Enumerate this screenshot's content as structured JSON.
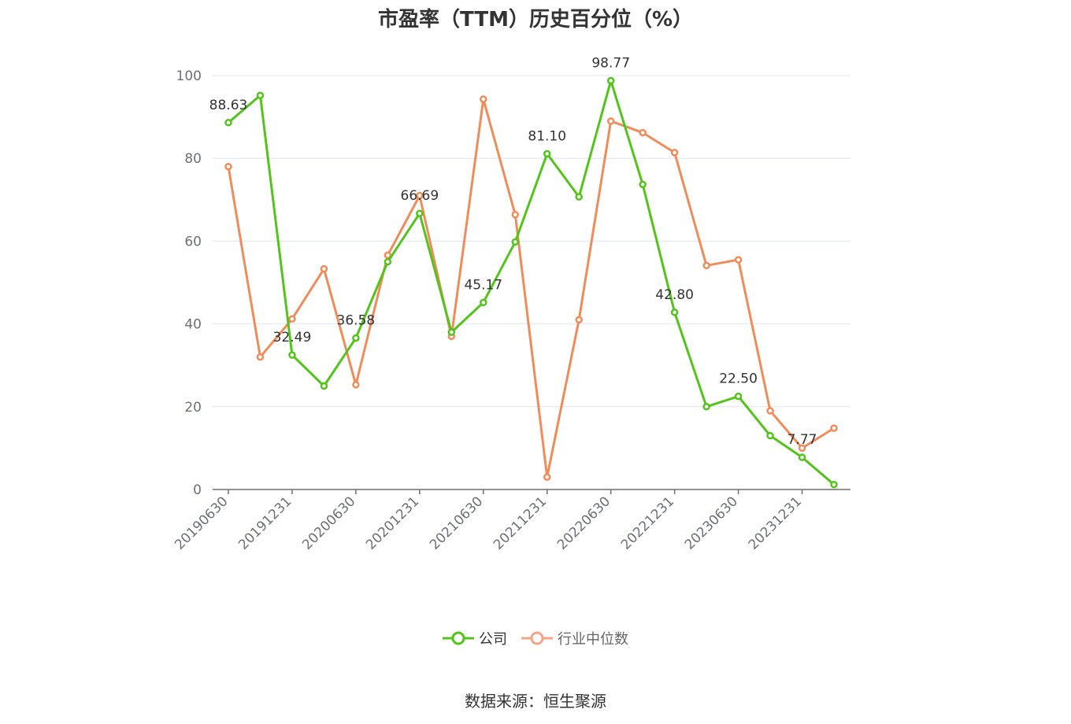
{
  "chart_data": {
    "type": "line",
    "title": "市盈率（TTM）历史百分位（%）",
    "xlabel": "",
    "ylabel": "",
    "ylim": [
      0,
      100
    ],
    "yticks": [
      0,
      20,
      40,
      60,
      80,
      100
    ],
    "grid": true,
    "legend_position": "bottom",
    "x": [
      "20190630",
      "20190930",
      "20191231",
      "20200331",
      "20200630",
      "20200930",
      "20201231",
      "20210331",
      "20210630",
      "20210930",
      "20211231",
      "20220331",
      "20220630",
      "20220930",
      "20221231",
      "20230331",
      "20230630",
      "20230930",
      "20231231",
      "20240331"
    ],
    "x_tick_labels": [
      "20190630",
      "20191231",
      "20200630",
      "20201231",
      "20210630",
      "20211231",
      "20220630",
      "20221231",
      "20230630",
      "20231231"
    ],
    "series": [
      {
        "name": "公司",
        "color": "#52c41a",
        "values": [
          88.63,
          95.2,
          32.49,
          25.0,
          36.58,
          55.0,
          66.69,
          38.0,
          45.17,
          59.8,
          81.1,
          70.7,
          98.77,
          73.7,
          42.8,
          20.0,
          22.5,
          13.0,
          7.77,
          1.2
        ],
        "data_labels": {
          "0": "88.63",
          "2": "32.49",
          "4": "36.58",
          "6": "66.69",
          "8": "45.17",
          "10": "81.10",
          "12": "98.77",
          "14": "42.80",
          "16": "22.50",
          "18": "7.77"
        }
      },
      {
        "name": "行业中位数",
        "color": "#f08c5a",
        "values": [
          78.0,
          32.0,
          41.2,
          53.3,
          25.3,
          56.6,
          71.0,
          37.0,
          94.3,
          66.4,
          3.0,
          41.0,
          89.0,
          86.2,
          81.4,
          54.1,
          55.5,
          19.0,
          10.0,
          14.8
        ]
      }
    ]
  },
  "legend": {
    "items": [
      {
        "label": "公司",
        "color": "#52c41a"
      },
      {
        "label": "行业中位数",
        "color": "#f5a585"
      }
    ]
  },
  "source_text": "数据来源：恒生聚源"
}
